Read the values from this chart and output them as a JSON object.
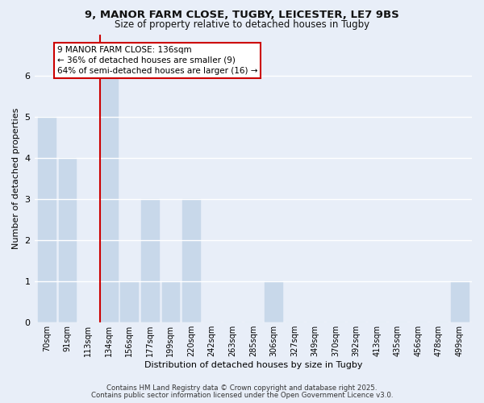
{
  "title_line1": "9, MANOR FARM CLOSE, TUGBY, LEICESTER, LE7 9BS",
  "title_line2": "Size of property relative to detached houses in Tugby",
  "xlabel": "Distribution of detached houses by size in Tugby",
  "ylabel": "Number of detached properties",
  "bar_labels": [
    "70sqm",
    "91sqm",
    "113sqm",
    "134sqm",
    "156sqm",
    "177sqm",
    "199sqm",
    "220sqm",
    "242sqm",
    "263sqm",
    "285sqm",
    "306sqm",
    "327sqm",
    "349sqm",
    "370sqm",
    "392sqm",
    "413sqm",
    "435sqm",
    "456sqm",
    "478sqm",
    "499sqm"
  ],
  "bar_values": [
    5,
    4,
    0,
    6,
    1,
    3,
    1,
    3,
    0,
    0,
    0,
    1,
    0,
    0,
    0,
    0,
    0,
    0,
    0,
    0,
    1
  ],
  "bar_color": "#c8d8ea",
  "highlight_index": 3,
  "highlight_line_color": "#cc0000",
  "ylim": [
    0,
    7
  ],
  "yticks": [
    0,
    1,
    2,
    3,
    4,
    5,
    6
  ],
  "annotation_box_text": "9 MANOR FARM CLOSE: 136sqm\n← 36% of detached houses are smaller (9)\n64% of semi-detached houses are larger (16) →",
  "annotation_box_edgecolor": "#cc0000",
  "annotation_box_facecolor": "#ffffff",
  "footer_line1": "Contains HM Land Registry data © Crown copyright and database right 2025.",
  "footer_line2": "Contains public sector information licensed under the Open Government Licence v3.0.",
  "background_color": "#e8eef8",
  "grid_color": "#ffffff"
}
